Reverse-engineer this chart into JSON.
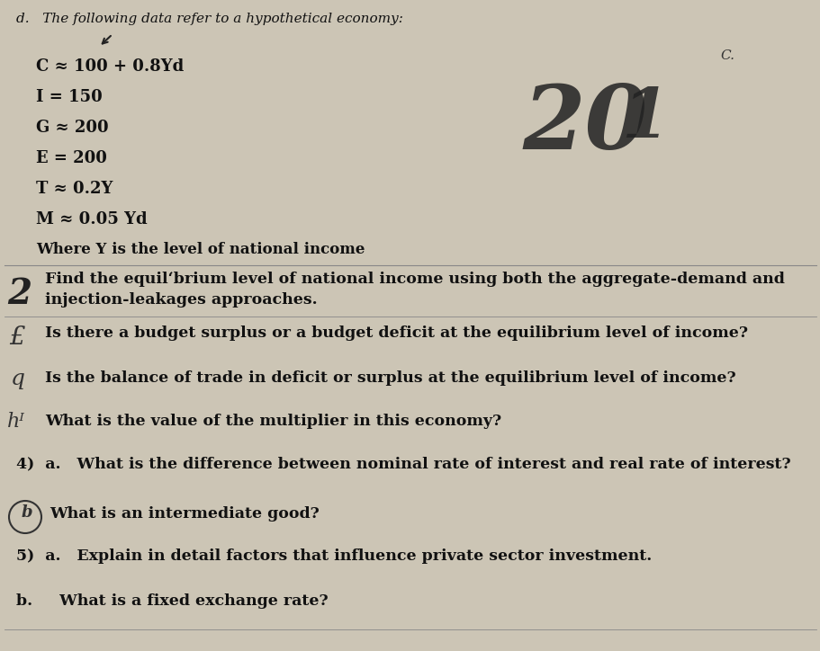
{
  "bg_color": "#ccc5b5",
  "text_color": "#111111",
  "figsize": [
    9.12,
    7.24
  ],
  "dpi": 100,
  "title": "d.   The following data refer to a hypothetical economy:",
  "eq_lines": [
    "C ≈ 100 + 0.8Yd",
    "I = 150",
    "G ≈ 200",
    "E = 200",
    "T ≈ 0.2Y",
    "M ≈ 0.05 Yd",
    "Where Y is the level of national income"
  ],
  "q_lines": [
    "Find the equilʻbrium level of national income using both the aggregate-demand and",
    "injection-leakages approaches.",
    "Is there a budget surplus or a budget deficit at the equilibrium level of income?",
    "Is the balance of trade in deficit or surplus at the equilibrium level of income?",
    "What is the value of the multiplier in this economy?",
    "4)  a.   What is the difference between nominal rate of interest and real rate of interest?",
    "         b.   What is an intermediate good?",
    "5)  a.   Explain in detail factors that influence private sector investment.",
    "b.        What is a fixed exchange rate?"
  ]
}
